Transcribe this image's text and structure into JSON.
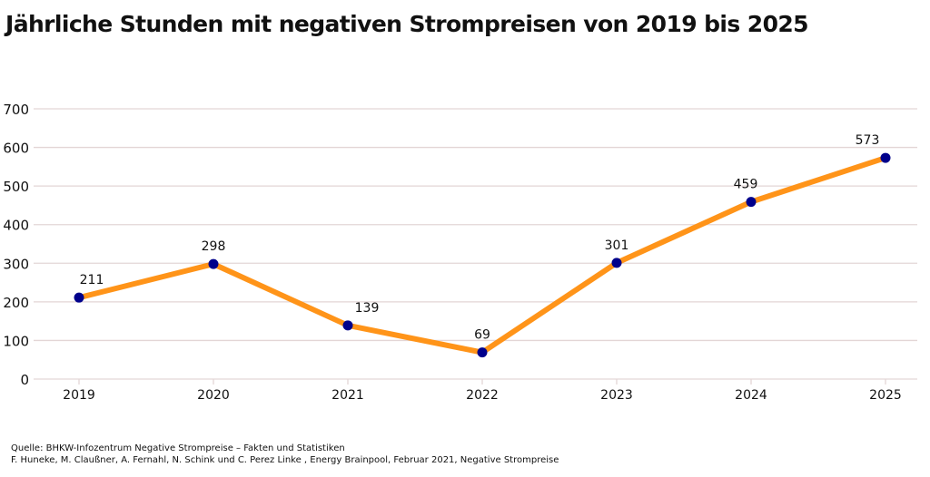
{
  "chart_data": {
    "type": "line",
    "title": "Jährliche Stunden mit negativen Strompreisen von 2019 bis 2025",
    "categories": [
      "2019",
      "2020",
      "2021",
      "2022",
      "2023",
      "2024",
      "2025"
    ],
    "values": [
      211,
      298,
      139,
      69,
      301,
      459,
      573
    ],
    "data_labels": [
      "211",
      "298",
      "139",
      "69",
      "301",
      "459",
      "573"
    ],
    "ylim": [
      0,
      700
    ],
    "yticks": [
      0,
      100,
      200,
      300,
      400,
      500,
      600,
      700
    ],
    "xlabel": "",
    "ylabel": "",
    "grid": true,
    "legend": "none",
    "line_color": "#ff9419",
    "marker_color": "#00008b",
    "grid_color": "#e3d6d6"
  },
  "source": {
    "line1": "Quelle: BHKW-Infozentrum Negative Strompreise – Fakten und Statistiken",
    "line2": "F. Huneke, M. Claußner, A. Fernahl, N. Schink und C. Perez Linke , Energy Brainpool, Februar 2021, Negative Strompreise"
  }
}
